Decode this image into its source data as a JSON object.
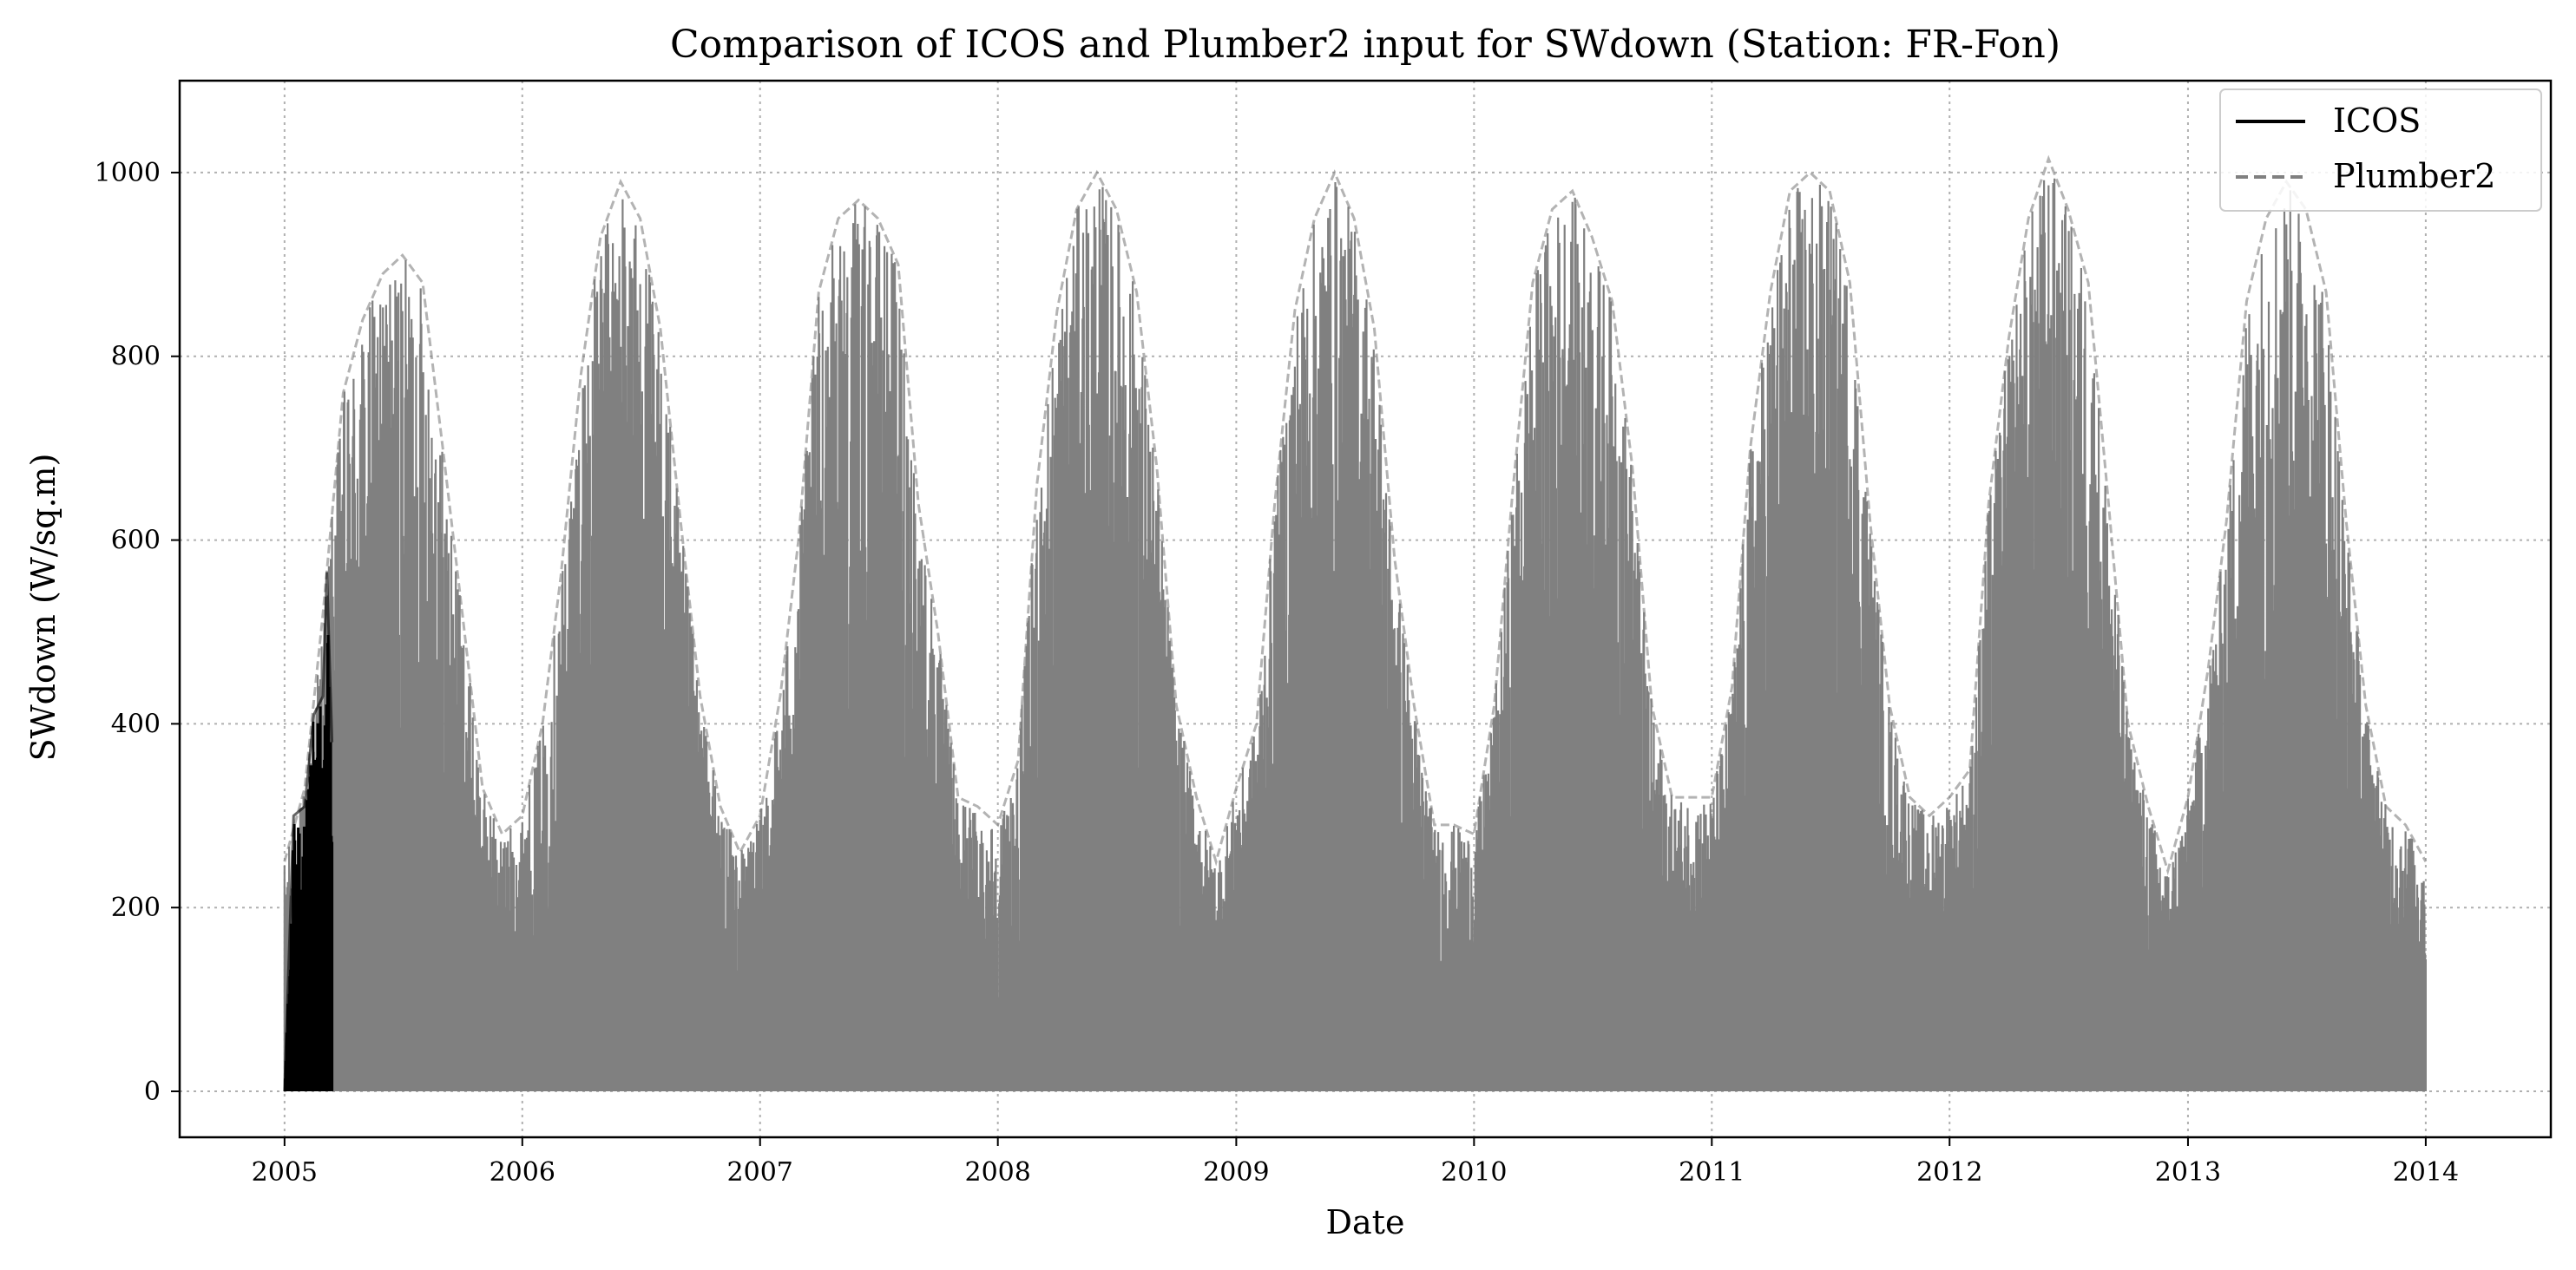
{
  "chart_data": {
    "type": "line",
    "title": "Comparison of ICOS and Plumber2 input for SWdown (Station: FR-Fon)",
    "xlabel": "Date",
    "ylabel": "SWdown (W/sq.m)",
    "xlim": [
      "2004-07-24",
      "2014-07-12"
    ],
    "ylim": [
      -50,
      1100
    ],
    "xticks": [
      "2005",
      "2006",
      "2007",
      "2008",
      "2009",
      "2010",
      "2011",
      "2012",
      "2013",
      "2014"
    ],
    "yticks": [
      0,
      200,
      400,
      600,
      800,
      1000
    ],
    "grid": true,
    "legend": {
      "position": "top-right",
      "entries": [
        "ICOS",
        "Plumber2"
      ]
    },
    "colors": {
      "ICOS": "#000000",
      "Plumber2": "#808080"
    },
    "series": [
      {
        "name": "ICOS",
        "style": "solid",
        "note_data": "daily-maximum envelope, monthly points; series is half-hourly and fills down to 0 each night",
        "x": [
          "2005-01-01",
          "2005-01-15",
          "2005-02-01",
          "2005-02-15",
          "2005-03-01",
          "2005-03-07",
          "2005-03-15"
        ],
        "y": [
          0,
          300,
          310,
          410,
          430,
          565,
          380
        ]
      },
      {
        "name": "Plumber2",
        "style": "dashed",
        "x": [
          "2005-01-01",
          "2005-02-01",
          "2005-03-01",
          "2005-04-01",
          "2005-05-01",
          "2005-06-01",
          "2005-07-01",
          "2005-08-01",
          "2005-09-01",
          "2005-10-01",
          "2005-11-01",
          "2005-12-01",
          "2006-01-01",
          "2006-02-01",
          "2006-03-01",
          "2006-04-01",
          "2006-05-01",
          "2006-06-01",
          "2006-07-01",
          "2006-08-01",
          "2006-09-01",
          "2006-10-01",
          "2006-11-01",
          "2006-12-01",
          "2007-01-01",
          "2007-02-01",
          "2007-03-01",
          "2007-04-01",
          "2007-05-01",
          "2007-06-01",
          "2007-07-01",
          "2007-08-01",
          "2007-09-01",
          "2007-10-01",
          "2007-11-01",
          "2007-12-01",
          "2008-01-01",
          "2008-02-01",
          "2008-03-01",
          "2008-04-01",
          "2008-05-01",
          "2008-06-01",
          "2008-07-01",
          "2008-08-01",
          "2008-09-01",
          "2008-10-01",
          "2008-11-01",
          "2008-12-01",
          "2009-01-01",
          "2009-02-01",
          "2009-03-01",
          "2009-04-01",
          "2009-05-01",
          "2009-06-01",
          "2009-07-01",
          "2009-08-01",
          "2009-09-01",
          "2009-10-01",
          "2009-11-01",
          "2009-12-01",
          "2010-01-01",
          "2010-02-01",
          "2010-03-01",
          "2010-04-01",
          "2010-05-01",
          "2010-06-01",
          "2010-07-01",
          "2010-08-01",
          "2010-09-01",
          "2010-10-01",
          "2010-11-01",
          "2010-12-01",
          "2011-01-01",
          "2011-02-01",
          "2011-03-01",
          "2011-04-01",
          "2011-05-01",
          "2011-06-01",
          "2011-07-01",
          "2011-08-01",
          "2011-09-01",
          "2011-10-01",
          "2011-11-01",
          "2011-12-01",
          "2012-01-01",
          "2012-02-01",
          "2012-03-01",
          "2012-04-01",
          "2012-05-01",
          "2012-06-01",
          "2012-07-01",
          "2012-08-01",
          "2012-09-01",
          "2012-10-01",
          "2012-11-01",
          "2012-12-01",
          "2013-01-01",
          "2013-02-01",
          "2013-03-01",
          "2013-04-01",
          "2013-05-01",
          "2013-06-01",
          "2013-07-01",
          "2013-08-01",
          "2013-09-01",
          "2013-10-01",
          "2013-11-01",
          "2013-12-01",
          "2014-01-01"
        ],
        "y": [
          250,
          330,
          520,
          760,
          840,
          890,
          910,
          880,
          700,
          520,
          330,
          280,
          300,
          400,
          560,
          780,
          930,
          990,
          950,
          830,
          620,
          430,
          310,
          260,
          300,
          430,
          600,
          870,
          950,
          970,
          950,
          900,
          640,
          500,
          320,
          310,
          290,
          360,
          660,
          850,
          960,
          1000,
          960,
          870,
          680,
          420,
          320,
          250,
          330,
          400,
          640,
          850,
          950,
          1000,
          950,
          830,
          580,
          420,
          290,
          290,
          280,
          420,
          650,
          880,
          960,
          980,
          930,
          860,
          680,
          420,
          320,
          320,
          320,
          440,
          700,
          870,
          980,
          1000,
          980,
          880,
          620,
          420,
          320,
          300,
          320,
          350,
          640,
          820,
          950,
          1015,
          960,
          880,
          640,
          400,
          310,
          240,
          320,
          460,
          620,
          860,
          950,
          990,
          960,
          870,
          620,
          420,
          310,
          290,
          250
        ]
      }
    ]
  }
}
